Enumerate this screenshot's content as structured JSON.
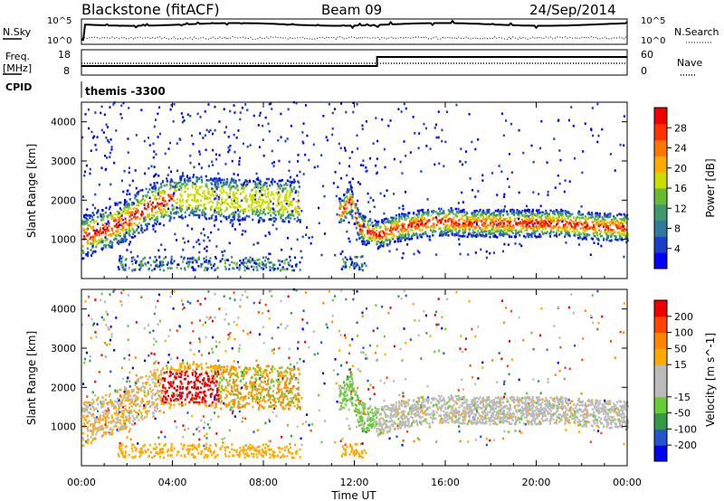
{
  "header": {
    "station": "Blackstone (fitACF)",
    "beam": "Beam 09",
    "date": "24/Sep/2014"
  },
  "top_panels": {
    "nsky_label": "N.Sky",
    "nsearch_label": "N.Search",
    "nsky_ticks": [
      "10^5",
      "10^0"
    ],
    "nsearch_ticks": [
      "10^5",
      "10^0"
    ],
    "freq_label_1": "Freq.",
    "freq_label_2": "[MHz]",
    "freq_ticks": [
      "18",
      "8"
    ],
    "nave_label": "Nave",
    "nave_ticks": [
      "60",
      "0"
    ],
    "cpid_label": "CPID",
    "cpid_value": "themis -3300"
  },
  "x_axis": {
    "label": "Time UT",
    "ticks": [
      "00:00",
      "04:00",
      "08:00",
      "12:00",
      "16:00",
      "20:00",
      "00:00"
    ]
  },
  "colors": {
    "power_scale": [
      "#0000ff",
      "#1a3fc8",
      "#2f7a9a",
      "#3c9a6e",
      "#66bb33",
      "#ccdd00",
      "#ffaa00",
      "#ff7700",
      "#ff3300",
      "#ee0000"
    ],
    "velocity_scale": [
      "#0000ee",
      "#2255cc",
      "#339944",
      "#66cc33",
      "#bbbbbb",
      "#bbbbbb",
      "#ffaa00",
      "#ff8800",
      "#ff4400",
      "#ee0000"
    ]
  },
  "chart_data": [
    {
      "type": "heatmap",
      "panel": "power",
      "ylabel": "Slant Range [km]",
      "yticks": [
        "4000",
        "3000",
        "2000",
        "1000"
      ],
      "ylim": [
        0,
        4500
      ],
      "xlim_hours": [
        0,
        24
      ],
      "colorbar_label": "Power [dB]",
      "colorbar_ticks": [
        "28",
        "24",
        "20",
        "16",
        "12",
        "8",
        "4"
      ],
      "colorbar_range": [
        0,
        32
      ],
      "band_center_km": [
        [
          0,
          1050
        ],
        [
          1,
          1250
        ],
        [
          2,
          1500
        ],
        [
          3,
          1850
        ],
        [
          4,
          2050
        ],
        [
          5,
          2100
        ],
        [
          6,
          2000
        ],
        [
          7,
          2000
        ],
        [
          8,
          2000
        ],
        [
          9,
          1950
        ],
        [
          9.5,
          1950
        ],
        [
          11.4,
          1700
        ],
        [
          11.8,
          2000
        ],
        [
          12.2,
          1300
        ],
        [
          13,
          1100
        ],
        [
          14,
          1300
        ],
        [
          15,
          1400
        ],
        [
          16,
          1450
        ],
        [
          17,
          1400
        ],
        [
          18,
          1400
        ],
        [
          19,
          1400
        ],
        [
          20,
          1400
        ],
        [
          21,
          1400
        ],
        [
          22,
          1350
        ],
        [
          23,
          1300
        ],
        [
          24,
          1300
        ]
      ]
    },
    {
      "type": "heatmap",
      "panel": "velocity",
      "ylabel": "Slant Range [km]",
      "yticks": [
        "4000",
        "3000",
        "2000",
        "1000"
      ],
      "ylim": [
        0,
        4500
      ],
      "xlim_hours": [
        0,
        24
      ],
      "colorbar_label": "Velocity [m s^-1]",
      "colorbar_ticks": [
        "200",
        "100",
        "50",
        "15",
        "-15",
        "-50",
        "-100",
        "-200"
      ],
      "colorbar_range": [
        -250,
        250
      ]
    }
  ]
}
